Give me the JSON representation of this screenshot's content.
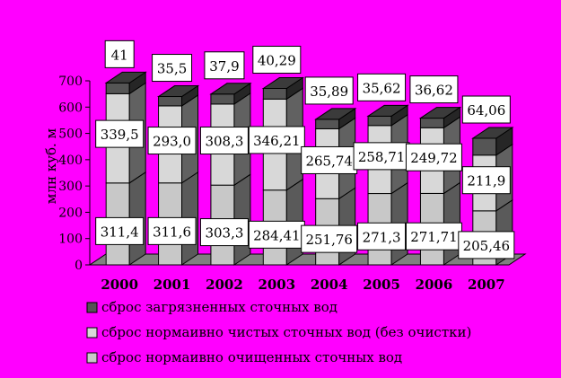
{
  "chart_data": {
    "type": "bar",
    "stacked": true,
    "three_d": true,
    "ylabel": "млн куб. м",
    "ylim": [
      0,
      700
    ],
    "yticks": [
      0,
      100,
      200,
      300,
      400,
      500,
      600,
      700
    ],
    "categories": [
      "2000",
      "2001",
      "2002",
      "2003",
      "2004",
      "2005",
      "2006",
      "2007"
    ],
    "series": [
      {
        "name": "сброс нормаивно очищенных сточных вод",
        "color": "#c8c8c8",
        "values": [
          311.4,
          311.6,
          303.3,
          284.41,
          251.76,
          271.3,
          271.71,
          205.46
        ],
        "labels": [
          "311,4",
          "311,6",
          "303,3",
          "284,41",
          "251,76",
          "271,3",
          "271,71",
          "205,46"
        ]
      },
      {
        "name": "сброс нормаивно чистых сточных вод (без очистки)",
        "color": "#d8d8d8",
        "values": [
          339.5,
          293.0,
          308.3,
          346.21,
          265.74,
          258.71,
          249.72,
          211.9
        ],
        "labels": [
          "339,5",
          "293,0",
          "308,3",
          "346,21",
          "265,74",
          "258,71",
          "249,72",
          "211,9"
        ]
      },
      {
        "name": "сброс загрязненных сточных вод",
        "color": "#555555",
        "values": [
          41,
          35.5,
          37.9,
          40.29,
          35.89,
          35.62,
          36.62,
          64.06
        ],
        "labels": [
          "41",
          "35,5",
          "37,9",
          "40,29",
          "35,89",
          "35,62",
          "36,62",
          "64,06"
        ]
      }
    ],
    "legend_position": "bottom",
    "legend_order": [
      2,
      1,
      0
    ],
    "grid": false,
    "background": "#ff00ff"
  }
}
